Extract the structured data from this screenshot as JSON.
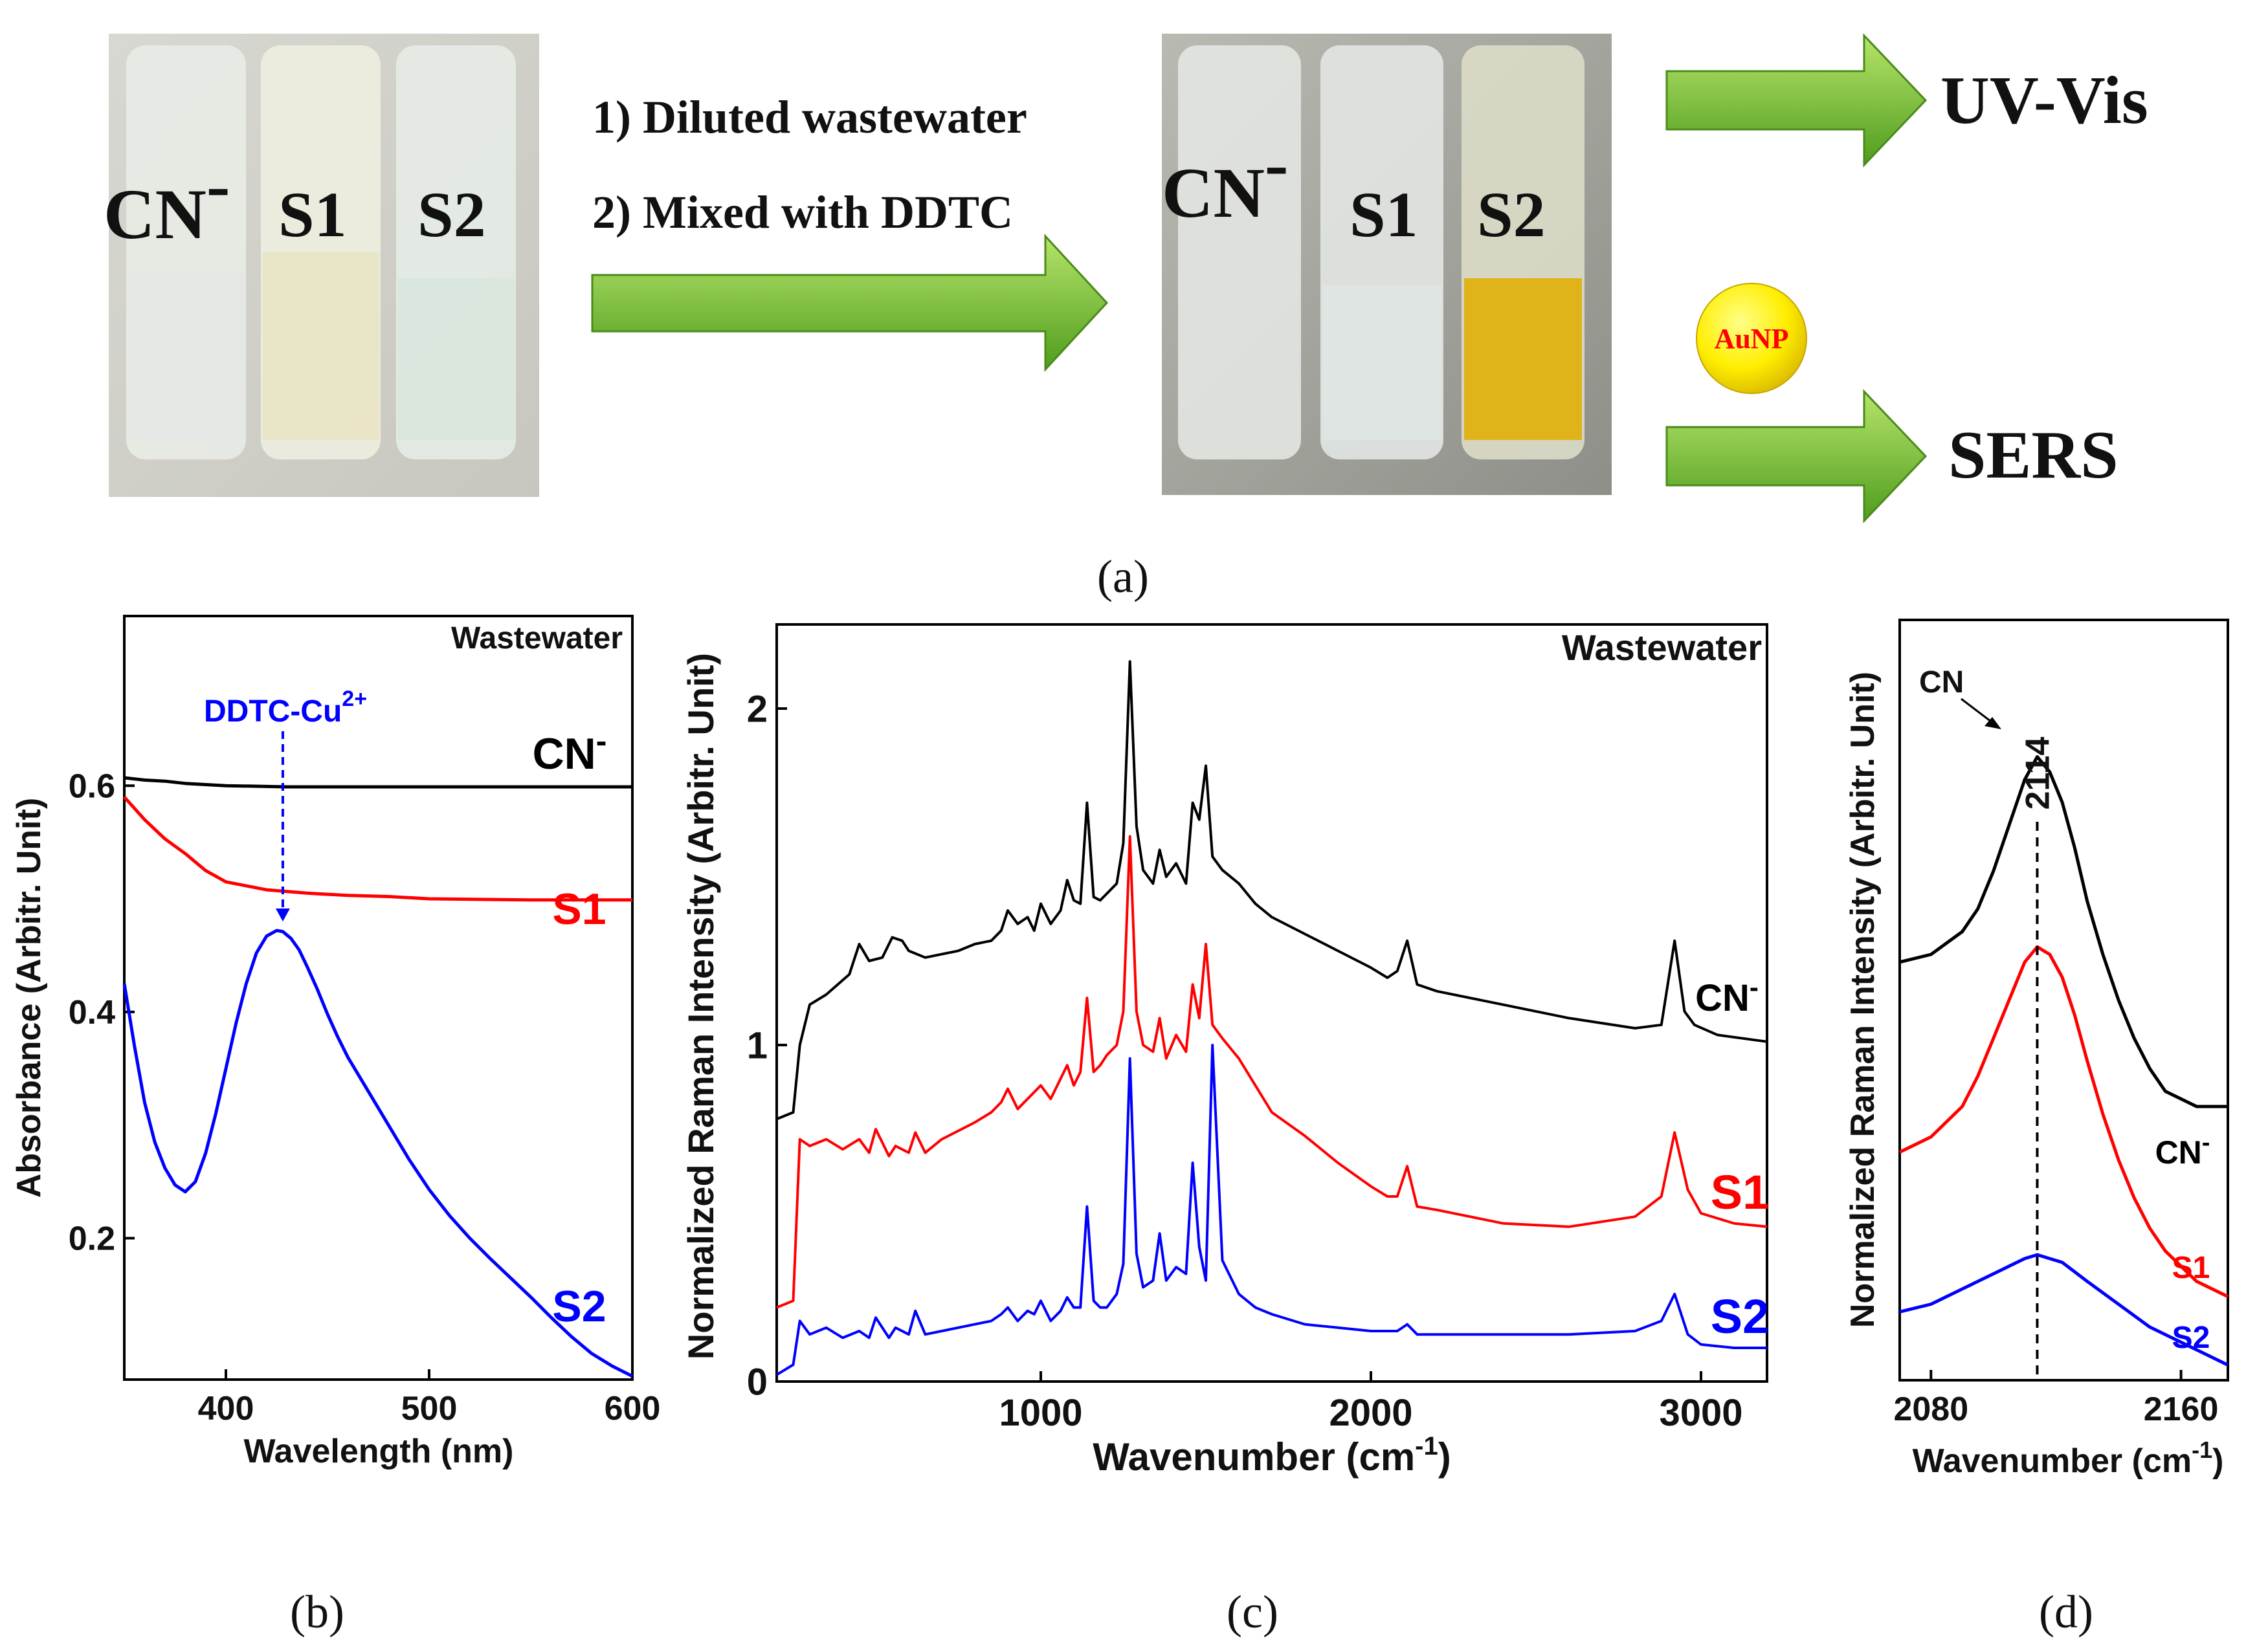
{
  "colors": {
    "cn": "#000000",
    "s1": "#ff0000",
    "s2": "#0000ff",
    "arrow_light": "#9fd650",
    "arrow_dark": "#4a9a18",
    "aunp_fill": "#ffee00",
    "aunp_text": "#ff0000"
  },
  "panel_a": {
    "photo1_labels": [
      "CN",
      "S1",
      "S2"
    ],
    "photo1_superscript": "-",
    "step1": "1) Diluted wastewater",
    "step2": "2) Mixed with DDTC",
    "photo2_labels": [
      "CN",
      "S1",
      "S2"
    ],
    "photo2_superscript": "-",
    "out_uvvis": "UV-Vis",
    "out_sers": "SERS",
    "aunp": "AuNP",
    "caption": "(a)"
  },
  "chart_data": [
    {
      "id": "b",
      "type": "line",
      "caption": "(b)",
      "annotation": "Wastewater",
      "xlabel": "Wavelength (nm)",
      "ylabel": "Absorbance (Arbitr. Unit)",
      "xlim": [
        350,
        600
      ],
      "ylim": [
        0.075,
        0.75
      ],
      "xticks": [
        400,
        500,
        600
      ],
      "yticks": [
        0.2,
        0.4,
        0.6
      ],
      "peak_label": "DDTC-Cu",
      "peak_label_sup": "2+",
      "peak_x": 428,
      "series": [
        {
          "name": "CN",
          "sup": "-",
          "color": "#000000",
          "x": [
            350,
            360,
            370,
            380,
            400,
            430,
            450,
            500,
            550,
            600
          ],
          "y": [
            0.607,
            0.605,
            0.604,
            0.602,
            0.6,
            0.599,
            0.599,
            0.599,
            0.599,
            0.599
          ]
        },
        {
          "name": "S1",
          "sup": "",
          "color": "#ff0000",
          "x": [
            350,
            360,
            370,
            380,
            390,
            400,
            420,
            440,
            460,
            480,
            500,
            550,
            600
          ],
          "y": [
            0.59,
            0.57,
            0.553,
            0.54,
            0.525,
            0.515,
            0.508,
            0.505,
            0.503,
            0.502,
            0.5,
            0.499,
            0.499
          ]
        },
        {
          "name": "S2",
          "sup": "",
          "color": "#0000ff",
          "x": [
            350,
            355,
            360,
            365,
            370,
            375,
            380,
            385,
            390,
            395,
            400,
            405,
            410,
            415,
            420,
            425,
            428,
            432,
            436,
            440,
            445,
            450,
            455,
            460,
            470,
            480,
            490,
            500,
            510,
            520,
            530,
            540,
            550,
            560,
            570,
            580,
            590,
            600
          ],
          "y": [
            0.425,
            0.37,
            0.32,
            0.285,
            0.262,
            0.247,
            0.241,
            0.25,
            0.275,
            0.31,
            0.35,
            0.39,
            0.425,
            0.452,
            0.467,
            0.472,
            0.471,
            0.465,
            0.455,
            0.44,
            0.42,
            0.398,
            0.378,
            0.36,
            0.33,
            0.3,
            0.27,
            0.243,
            0.22,
            0.2,
            0.182,
            0.165,
            0.148,
            0.13,
            0.113,
            0.098,
            0.087,
            0.078
          ]
        }
      ]
    },
    {
      "id": "c",
      "type": "line",
      "caption": "(c)",
      "annotation": "Wastewater",
      "xlabel": "Wavenumber (cm",
      "xlabel_sup": "-1",
      "xlabel_end": ")",
      "ylabel": "Normalized Raman Intensity (Arbitr. Unit)",
      "xlim": [
        200,
        3200
      ],
      "ylim": [
        0,
        2.25
      ],
      "xticks": [
        1000,
        2000,
        3000
      ],
      "yticks": [
        0,
        1,
        2
      ],
      "series": [
        {
          "name": "CN",
          "sup": "-",
          "color": "#000000",
          "x": [
            200,
            250,
            270,
            300,
            350,
            420,
            450,
            480,
            520,
            550,
            580,
            600,
            650,
            700,
            750,
            800,
            850,
            880,
            900,
            930,
            960,
            980,
            1000,
            1030,
            1060,
            1080,
            1100,
            1120,
            1140,
            1160,
            1180,
            1200,
            1230,
            1250,
            1270,
            1290,
            1310,
            1340,
            1360,
            1380,
            1410,
            1440,
            1460,
            1480,
            1500,
            1520,
            1550,
            1600,
            1650,
            1700,
            1800,
            1900,
            2000,
            2050,
            2080,
            2110,
            2140,
            2200,
            2400,
            2600,
            2800,
            2880,
            2920,
            2950,
            2980,
            3050,
            3200
          ],
          "y": [
            0.78,
            0.8,
            1.0,
            1.12,
            1.15,
            1.21,
            1.3,
            1.25,
            1.26,
            1.32,
            1.31,
            1.28,
            1.26,
            1.27,
            1.28,
            1.3,
            1.31,
            1.34,
            1.4,
            1.36,
            1.38,
            1.34,
            1.42,
            1.36,
            1.4,
            1.49,
            1.43,
            1.42,
            1.72,
            1.44,
            1.43,
            1.45,
            1.48,
            1.6,
            2.14,
            1.65,
            1.52,
            1.48,
            1.58,
            1.5,
            1.54,
            1.48,
            1.72,
            1.67,
            1.83,
            1.56,
            1.52,
            1.48,
            1.42,
            1.38,
            1.33,
            1.28,
            1.23,
            1.2,
            1.22,
            1.31,
            1.18,
            1.16,
            1.12,
            1.08,
            1.05,
            1.06,
            1.31,
            1.1,
            1.06,
            1.03,
            1.01
          ]
        },
        {
          "name": "S1",
          "sup": "",
          "color": "#ff0000",
          "x": [
            200,
            250,
            270,
            300,
            350,
            400,
            450,
            480,
            500,
            540,
            560,
            600,
            620,
            650,
            700,
            800,
            850,
            880,
            900,
            930,
            960,
            980,
            1000,
            1030,
            1060,
            1080,
            1100,
            1120,
            1140,
            1160,
            1180,
            1200,
            1230,
            1250,
            1270,
            1290,
            1310,
            1340,
            1360,
            1380,
            1410,
            1440,
            1460,
            1480,
            1500,
            1520,
            1550,
            1600,
            1650,
            1700,
            1800,
            1900,
            2000,
            2050,
            2080,
            2110,
            2140,
            2200,
            2400,
            2600,
            2800,
            2880,
            2920,
            2960,
            3000,
            3100,
            3200
          ],
          "y": [
            0.22,
            0.24,
            0.72,
            0.7,
            0.72,
            0.69,
            0.72,
            0.68,
            0.75,
            0.67,
            0.7,
            0.68,
            0.74,
            0.68,
            0.72,
            0.77,
            0.8,
            0.83,
            0.87,
            0.81,
            0.84,
            0.86,
            0.88,
            0.84,
            0.9,
            0.94,
            0.88,
            0.92,
            1.14,
            0.92,
            0.94,
            0.97,
            1.0,
            1.1,
            1.62,
            1.1,
            1.0,
            0.98,
            1.08,
            0.96,
            1.03,
            0.98,
            1.18,
            1.08,
            1.3,
            1.06,
            1.02,
            0.96,
            0.88,
            0.8,
            0.73,
            0.65,
            0.58,
            0.55,
            0.55,
            0.64,
            0.52,
            0.51,
            0.47,
            0.46,
            0.49,
            0.55,
            0.74,
            0.57,
            0.5,
            0.47,
            0.46
          ]
        },
        {
          "name": "S2",
          "sup": "",
          "color": "#0000ff",
          "x": [
            200,
            250,
            270,
            300,
            350,
            400,
            450,
            480,
            500,
            540,
            560,
            600,
            620,
            650,
            700,
            800,
            850,
            880,
            900,
            930,
            960,
            980,
            1000,
            1030,
            1060,
            1080,
            1100,
            1120,
            1140,
            1160,
            1180,
            1200,
            1230,
            1250,
            1270,
            1290,
            1310,
            1340,
            1360,
            1380,
            1410,
            1440,
            1460,
            1480,
            1500,
            1520,
            1550,
            1600,
            1650,
            1700,
            1800,
            1900,
            2000,
            2050,
            2080,
            2110,
            2140,
            2200,
            2400,
            2600,
            2800,
            2880,
            2920,
            2960,
            3000,
            3100,
            3200
          ],
          "y": [
            0.02,
            0.05,
            0.18,
            0.14,
            0.16,
            0.13,
            0.15,
            0.13,
            0.19,
            0.13,
            0.16,
            0.14,
            0.21,
            0.14,
            0.15,
            0.17,
            0.18,
            0.2,
            0.22,
            0.18,
            0.21,
            0.2,
            0.24,
            0.18,
            0.21,
            0.25,
            0.22,
            0.22,
            0.52,
            0.24,
            0.22,
            0.22,
            0.26,
            0.35,
            0.96,
            0.38,
            0.28,
            0.3,
            0.44,
            0.3,
            0.34,
            0.32,
            0.65,
            0.4,
            0.3,
            1.0,
            0.36,
            0.26,
            0.22,
            0.2,
            0.17,
            0.16,
            0.15,
            0.15,
            0.15,
            0.17,
            0.14,
            0.14,
            0.14,
            0.14,
            0.15,
            0.18,
            0.26,
            0.14,
            0.11,
            0.1,
            0.1
          ]
        }
      ]
    },
    {
      "id": "d",
      "type": "line",
      "caption": "(d)",
      "xlabel": "Wavenumber (cm",
      "xlabel_sup": "-1",
      "xlabel_end": ")",
      "ylabel": "Normalized Raman Intensity (Arbitr. Unit)",
      "xlim": [
        2070,
        2175
      ],
      "ylim": [
        0,
        1.0
      ],
      "xticks": [
        2080,
        2160
      ],
      "peak_label": "CN",
      "peak_value": "2114",
      "peak_x": 2114,
      "series": [
        {
          "name": "CN",
          "sup": "-",
          "color": "#000000",
          "x": [
            2070,
            2080,
            2090,
            2095,
            2100,
            2105,
            2110,
            2114,
            2118,
            2122,
            2126,
            2130,
            2135,
            2140,
            2145,
            2150,
            2155,
            2160,
            2165,
            2170,
            2175
          ],
          "y": [
            0.55,
            0.56,
            0.59,
            0.62,
            0.67,
            0.73,
            0.79,
            0.82,
            0.8,
            0.76,
            0.7,
            0.63,
            0.56,
            0.5,
            0.45,
            0.41,
            0.38,
            0.37,
            0.36,
            0.36,
            0.36
          ]
        },
        {
          "name": "S1",
          "sup": "",
          "color": "#ff0000",
          "x": [
            2070,
            2080,
            2090,
            2095,
            2100,
            2105,
            2110,
            2114,
            2118,
            2122,
            2126,
            2130,
            2135,
            2140,
            2145,
            2150,
            2155,
            2160,
            2165,
            2170,
            2175
          ],
          "y": [
            0.3,
            0.32,
            0.36,
            0.4,
            0.45,
            0.5,
            0.55,
            0.57,
            0.56,
            0.53,
            0.48,
            0.42,
            0.35,
            0.29,
            0.24,
            0.2,
            0.17,
            0.15,
            0.13,
            0.12,
            0.11
          ]
        },
        {
          "name": "S2",
          "sup": "",
          "color": "#0000ff",
          "x": [
            2070,
            2080,
            2090,
            2100,
            2105,
            2110,
            2114,
            2118,
            2122,
            2130,
            2140,
            2150,
            2160,
            2170,
            2175
          ],
          "y": [
            0.09,
            0.1,
            0.12,
            0.14,
            0.15,
            0.16,
            0.165,
            0.16,
            0.155,
            0.13,
            0.1,
            0.07,
            0.05,
            0.03,
            0.02
          ]
        }
      ]
    }
  ]
}
